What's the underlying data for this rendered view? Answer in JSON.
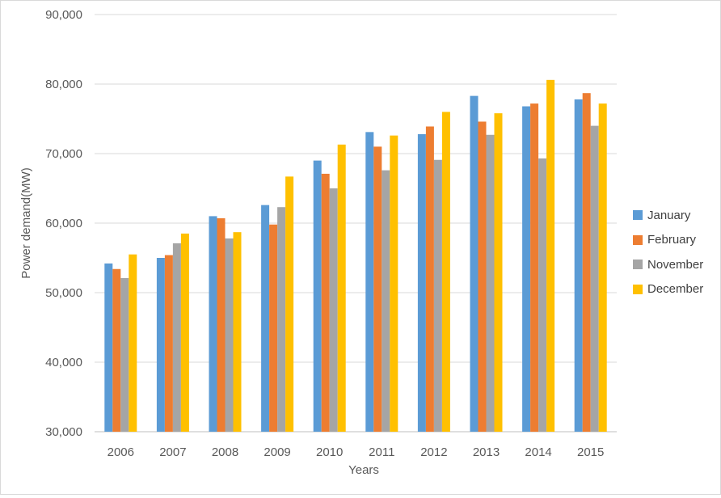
{
  "chart_data": {
    "type": "bar",
    "title": "",
    "xlabel": "Years",
    "ylabel": "Power demand(MW)",
    "ylim": [
      30000,
      90000
    ],
    "yticks": [
      30000,
      40000,
      50000,
      60000,
      70000,
      80000,
      90000
    ],
    "ytick_labels": [
      "30,000",
      "40,000",
      "50,000",
      "60,000",
      "70,000",
      "80,000",
      "90,000"
    ],
    "grid": true,
    "legend_position": "right",
    "categories": [
      "2006",
      "2007",
      "2008",
      "2009",
      "2010",
      "2011",
      "2012",
      "2013",
      "2014",
      "2015"
    ],
    "series": [
      {
        "name": "January",
        "color": "#5B9BD5",
        "values": [
          54200,
          55000,
          61000,
          62600,
          69000,
          73100,
          72800,
          78300,
          76800,
          77800
        ]
      },
      {
        "name": "February",
        "color": "#ED7D31",
        "values": [
          53400,
          55400,
          60700,
          59800,
          67100,
          71000,
          73900,
          74600,
          77200,
          78700
        ]
      },
      {
        "name": "November",
        "color": "#A5A5A5",
        "values": [
          52100,
          57100,
          57800,
          62300,
          65000,
          67600,
          69100,
          72700,
          69300,
          74000
        ]
      },
      {
        "name": "December",
        "color": "#FFC000",
        "values": [
          55500,
          58500,
          58700,
          66700,
          71300,
          72600,
          76000,
          75800,
          80600,
          77200
        ]
      }
    ]
  }
}
